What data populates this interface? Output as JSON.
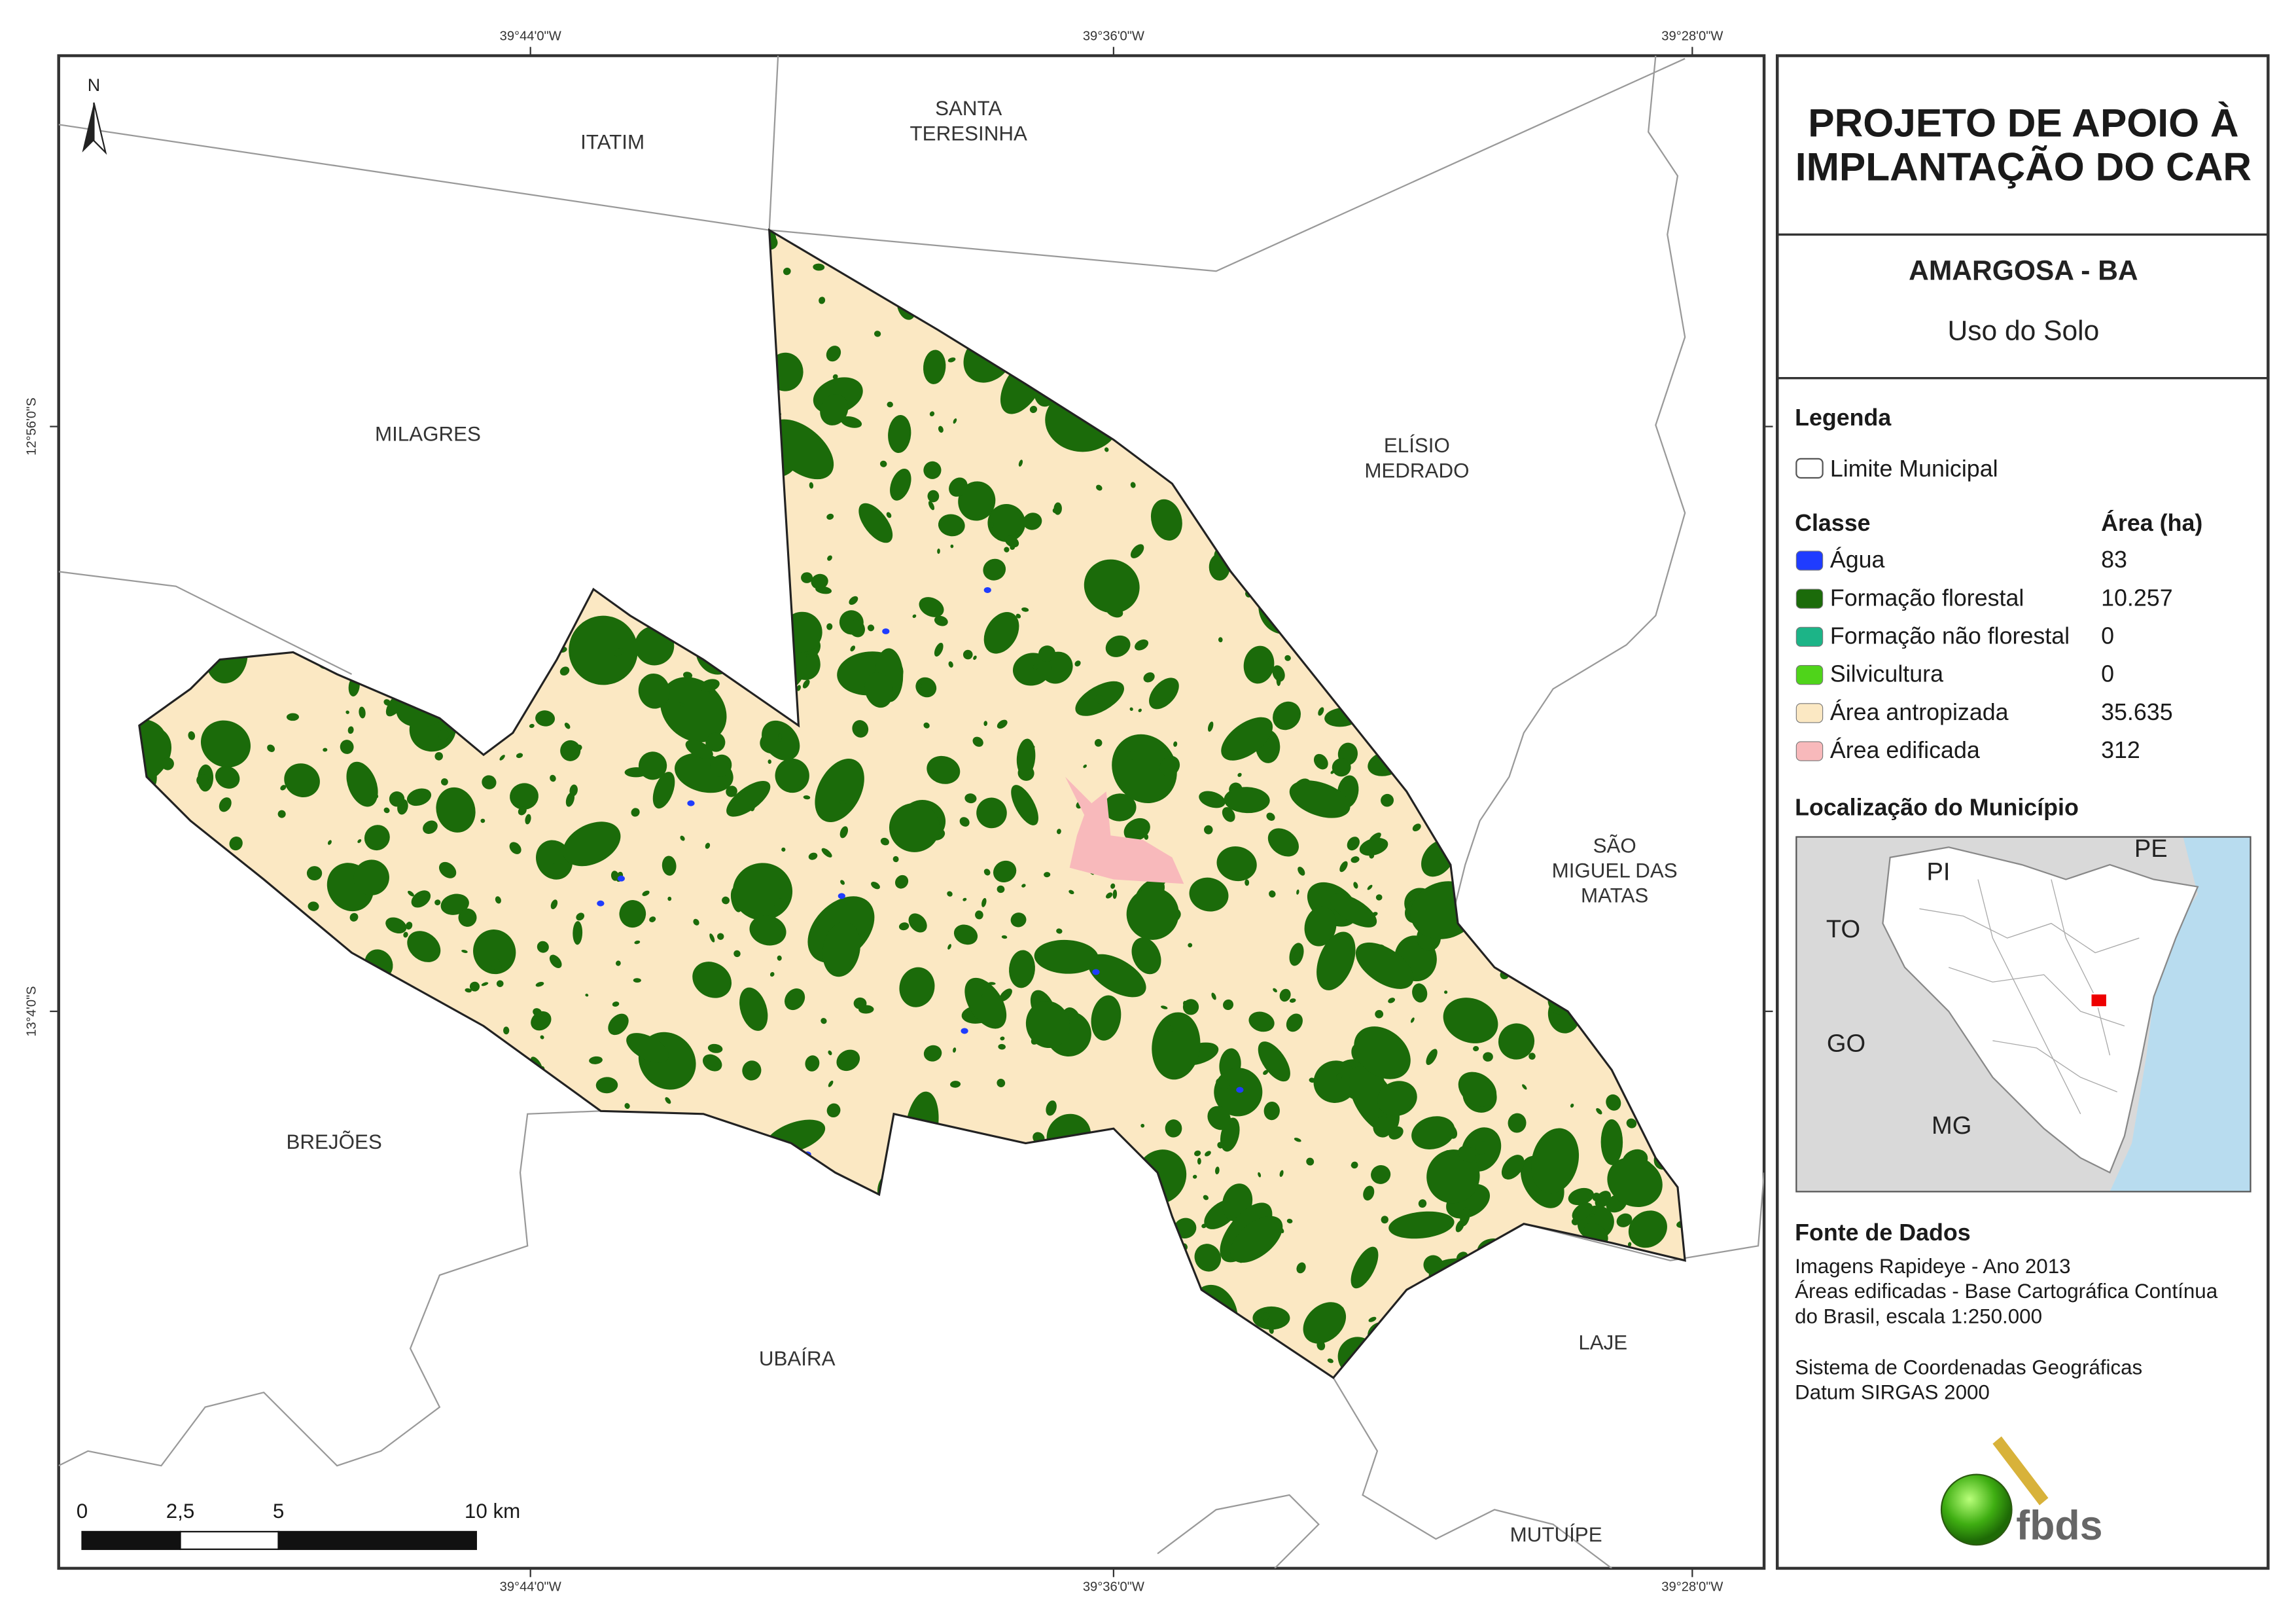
{
  "title": [
    "PROJETO DE APOIO À",
    "IMPLANTAÇÃO DO CAR"
  ],
  "subtitle": "AMARGOSA - BA",
  "theme": "Uso do Solo",
  "legend": {
    "title": "Legenda",
    "boundary": "Limite Municipal",
    "class_header": "Classe",
    "area_header": "Área (ha)",
    "rows": [
      {
        "name": "Água",
        "area": "83",
        "color": "#1f3cff"
      },
      {
        "name": "Formação florestal",
        "area": "10.257",
        "color": "#1b6b0a"
      },
      {
        "name": "Formação não florestal",
        "area": "0",
        "color": "#1cb487"
      },
      {
        "name": "Silvicultura",
        "area": "0",
        "color": "#4fd41a"
      },
      {
        "name": "Área antropizada",
        "area": "35.635",
        "color": "#fbe8c3"
      },
      {
        "name": "Área edificada",
        "area": "312",
        "color": "#f8b9bb"
      }
    ]
  },
  "location": {
    "title": "Localização do Município",
    "labels": [
      "PI",
      "PE",
      "TO",
      "GO",
      "MG"
    ]
  },
  "sources": {
    "title": "Fonte de Dados",
    "lines": [
      "Imagens Rapideye - Ano 2013",
      "Áreas edificadas - Base Cartográfica Contínua",
      "do Brasil, escala 1:250.000",
      "Sistema de Coordenadas Geográficas",
      "Datum SIRGAS 2000"
    ]
  },
  "logo": "fbds",
  "map": {
    "north": "N",
    "top_coords": [
      "39°44'0\"W",
      "39°36'0\"W",
      "39°28'0\"W"
    ],
    "bottom_coords": [
      "39°44'0\"W",
      "39°36'0\"W",
      "39°28'0\"W"
    ],
    "left_coords": [
      "12°56'0\"S",
      "13°4'0\"S"
    ],
    "places": [
      [
        "ITATIM"
      ],
      [
        "SANTA",
        "TERESINHA"
      ],
      [
        "MILAGRES"
      ],
      [
        "ELÍSIO",
        "MEDRADO"
      ],
      [
        "SÃO",
        "MIGUEL DAS",
        "MATAS"
      ],
      [
        "BREJÕES"
      ],
      [
        "UBAÍRA"
      ],
      [
        "LAJE"
      ],
      [
        "MUTUÍPE"
      ]
    ],
    "scale": [
      "0",
      "2,5",
      "5",
      "10 km"
    ]
  }
}
